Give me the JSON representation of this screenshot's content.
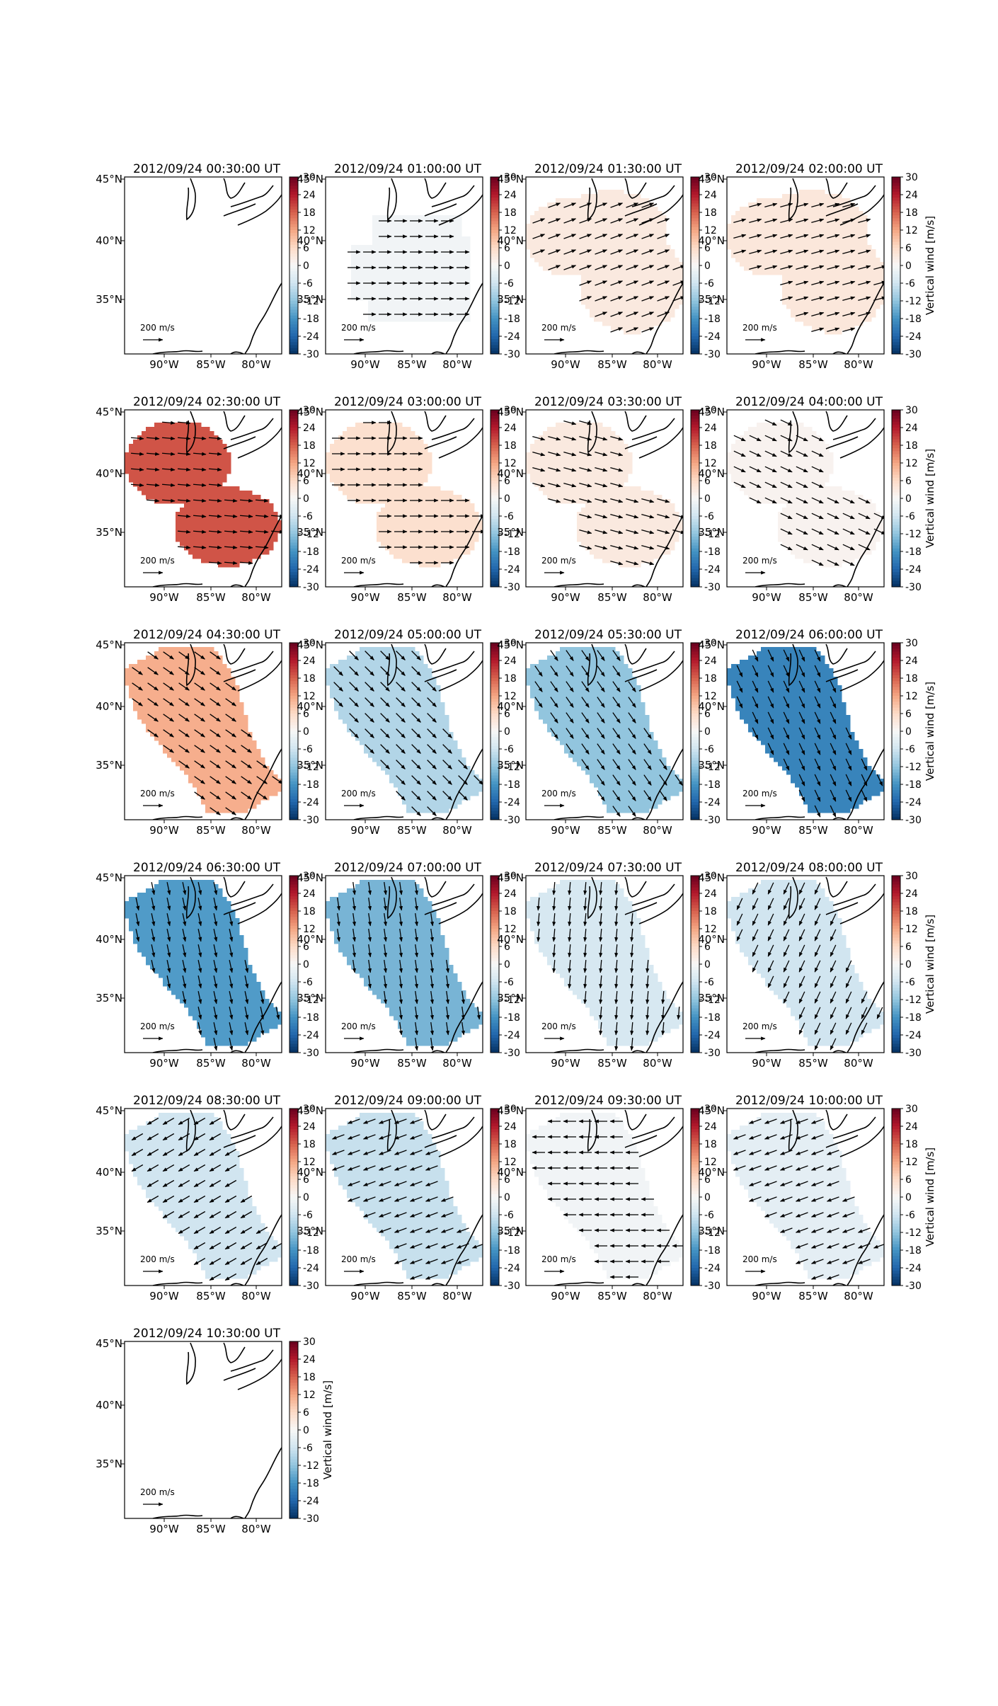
{
  "figure": {
    "colorbar": {
      "label": "Vertical wind [m/s]",
      "min": -30,
      "max": 30,
      "ticks": [
        30,
        24,
        18,
        12,
        6,
        0,
        -6,
        -12,
        -18,
        -24,
        -30
      ],
      "colors": [
        "#053061",
        "#2166ac",
        "#4393c3",
        "#92c5de",
        "#d1e5f0",
        "#f7f7f7",
        "#fddbc7",
        "#f4a582",
        "#d6604d",
        "#b2182b",
        "#67001f"
      ]
    },
    "map": {
      "x_ticks": [
        "90°W",
        "85°W",
        "80°W"
      ],
      "y_ticks": [
        "45°N",
        "40°N",
        "35°N"
      ],
      "reference_arrow_label": "200 m/s"
    },
    "panels": [
      {
        "title": "2012/09/24 00:30:00 UT",
        "value": null,
        "shape": "none",
        "arrow_dir": 0
      },
      {
        "title": "2012/09/24 01:00:00 UT",
        "value": -1,
        "shape": "small",
        "arrow_dir": 0
      },
      {
        "title": "2012/09/24 01:30:00 UT",
        "value": 3,
        "shape": "large",
        "arrow_dir": -20
      },
      {
        "title": "2012/09/24 02:00:00 UT",
        "value": 3.5,
        "shape": "large",
        "arrow_dir": -15
      },
      {
        "title": "2012/09/24 02:30:00 UT",
        "value": 19,
        "shape": "twoblob",
        "arrow_dir": 5
      },
      {
        "title": "2012/09/24 03:00:00 UT",
        "value": 5,
        "shape": "twoblob",
        "arrow_dir": 0
      },
      {
        "title": "2012/09/24 03:30:00 UT",
        "value": 3,
        "shape": "twoblob",
        "arrow_dir": 15
      },
      {
        "title": "2012/09/24 04:00:00 UT",
        "value": 1,
        "shape": "twoblob",
        "arrow_dir": 25
      },
      {
        "title": "2012/09/24 04:30:00 UT",
        "value": 11,
        "shape": "diagonal",
        "arrow_dir": 35
      },
      {
        "title": "2012/09/24 05:00:00 UT",
        "value": -9,
        "shape": "diagonal",
        "arrow_dir": 45
      },
      {
        "title": "2012/09/24 05:30:00 UT",
        "value": -12,
        "shape": "diagonal",
        "arrow_dir": 55
      },
      {
        "title": "2012/09/24 06:00:00 UT",
        "value": -20,
        "shape": "diagonal",
        "arrow_dir": 65
      },
      {
        "title": "2012/09/24 06:30:00 UT",
        "value": -17,
        "shape": "diagonal",
        "arrow_dir": 78
      },
      {
        "title": "2012/09/24 07:00:00 UT",
        "value": -14,
        "shape": "diagonal",
        "arrow_dir": 82
      },
      {
        "title": "2012/09/24 07:30:00 UT",
        "value": -5,
        "shape": "diagonal",
        "arrow_dir": 95
      },
      {
        "title": "2012/09/24 08:00:00 UT",
        "value": -6,
        "shape": "diagonal",
        "arrow_dir": 115
      },
      {
        "title": "2012/09/24 08:30:00 UT",
        "value": -6,
        "shape": "diagonal",
        "arrow_dir": 150
      },
      {
        "title": "2012/09/24 09:00:00 UT",
        "value": -7,
        "shape": "diagonal",
        "arrow_dir": 160
      },
      {
        "title": "2012/09/24 09:30:00 UT",
        "value": -1,
        "shape": "diagonal",
        "arrow_dir": 180
      },
      {
        "title": "2012/09/24 10:00:00 UT",
        "value": -3,
        "shape": "diagonal",
        "arrow_dir": 160
      },
      {
        "title": "2012/09/24 10:30:00 UT",
        "value": null,
        "shape": "none",
        "arrow_dir": 0
      }
    ]
  }
}
